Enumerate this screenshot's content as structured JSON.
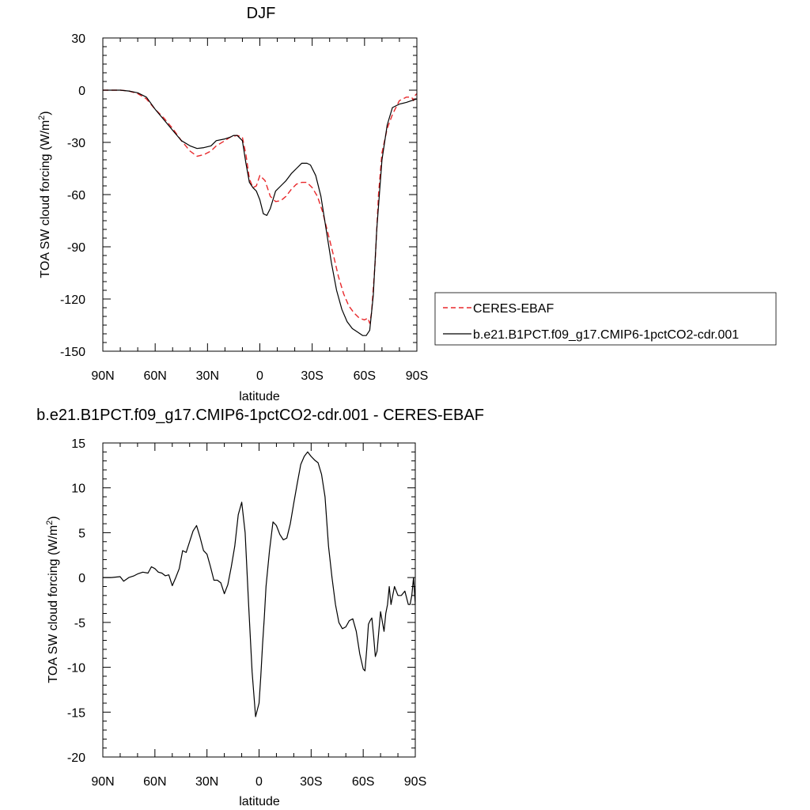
{
  "chart_data": [
    {
      "type": "line",
      "title": "DJF",
      "xlabel": "latitude",
      "ylabel": "TOA SW cloud forcing (W/m",
      "ylabel_sup": "2",
      "ylabel_close": ")",
      "xlim": [
        90,
        -90
      ],
      "ylim": [
        -150,
        30
      ],
      "xticks": [
        {
          "value": 90,
          "label": "90N"
        },
        {
          "value": 60,
          "label": "60N"
        },
        {
          "value": 30,
          "label": "30N"
        },
        {
          "value": 0,
          "label": "0"
        },
        {
          "value": -30,
          "label": "30S"
        },
        {
          "value": -60,
          "label": "60S"
        },
        {
          "value": -90,
          "label": "90S"
        }
      ],
      "yticks": [
        {
          "value": 30,
          "label": "30"
        },
        {
          "value": 0,
          "label": "0"
        },
        {
          "value": -30,
          "label": "-30"
        },
        {
          "value": -60,
          "label": "-60"
        },
        {
          "value": -90,
          "label": "-90"
        },
        {
          "value": -120,
          "label": "-120"
        },
        {
          "value": -150,
          "label": "-150"
        }
      ],
      "legend": {
        "placement": "right"
      },
      "series": [
        {
          "name": "CERES-EBAF",
          "color": "#e8282b",
          "dash": "dashed",
          "x": [
            90,
            85,
            80,
            75,
            70,
            65,
            60,
            55,
            50,
            45,
            40,
            36,
            32,
            28,
            25,
            20,
            17,
            13,
            10,
            8,
            6,
            4,
            2,
            0,
            -3,
            -6,
            -9,
            -12,
            -15,
            -18,
            -21,
            -24,
            -27,
            -30,
            -33,
            -36,
            -39,
            -42,
            -45,
            -48,
            -51,
            -54,
            -57,
            -60,
            -62,
            -63,
            -64,
            -66,
            -68,
            -70,
            -73,
            -76,
            -80,
            -84,
            -87,
            -88,
            -89,
            -90
          ],
          "y": [
            0,
            0,
            0,
            -0.5,
            -2,
            -5,
            -11,
            -16,
            -22,
            -29,
            -35,
            -38,
            -37,
            -35,
            -32,
            -29,
            -27,
            -26,
            -27,
            -37,
            -51,
            -56,
            -55,
            -49,
            -52,
            -61,
            -64,
            -63.5,
            -61,
            -57,
            -54,
            -53,
            -53,
            -56,
            -61,
            -70,
            -82,
            -94,
            -107,
            -117,
            -124,
            -128,
            -131,
            -132,
            -131,
            -134,
            -128,
            -100,
            -60,
            -36,
            -22,
            -14,
            -6,
            -4,
            -4,
            -6,
            -3,
            -2
          ]
        },
        {
          "name": "b.e21.B1PCT.f09_g17.CMIP6-1pctCO2-cdr.001",
          "color": "#000000",
          "dash": "solid",
          "x": [
            90,
            85,
            80,
            75,
            70,
            65,
            60,
            55,
            50,
            45,
            40,
            36,
            32,
            28,
            25,
            20,
            17,
            15,
            13,
            10,
            8,
            6,
            4,
            2,
            0,
            -2,
            -4,
            -6,
            -9,
            -12,
            -15,
            -18,
            -21,
            -24,
            -27,
            -29,
            -32,
            -35,
            -38,
            -41,
            -44,
            -47,
            -50,
            -53,
            -56,
            -59,
            -61,
            -63,
            -65,
            -67,
            -70,
            -73,
            -76,
            -80,
            -84,
            -87,
            -90
          ],
          "y": [
            0,
            0,
            0,
            -0.5,
            -1.5,
            -4,
            -11,
            -17,
            -23,
            -29,
            -32,
            -33.5,
            -33,
            -32,
            -29,
            -28,
            -27,
            -26,
            -26,
            -29,
            -42,
            -53,
            -56,
            -58,
            -63,
            -71,
            -72,
            -68,
            -58,
            -55,
            -52,
            -48,
            -45,
            -42,
            -42,
            -43,
            -49,
            -61,
            -80,
            -99,
            -115,
            -126,
            -133,
            -137,
            -139,
            -141,
            -141,
            -138,
            -118,
            -80,
            -40,
            -20,
            -10,
            -8,
            -7,
            -6,
            -5
          ]
        }
      ]
    },
    {
      "type": "line",
      "title": "b.e21.B1PCT.f09_g17.CMIP6-1pctCO2-cdr.001 - CERES-EBAF",
      "xlabel": "latitude",
      "ylabel": "TOA SW cloud forcing (W/m",
      "ylabel_sup": "2",
      "ylabel_close": ")",
      "xlim": [
        90,
        -90
      ],
      "ylim": [
        -20,
        15
      ],
      "xticks": [
        {
          "value": 90,
          "label": "90N"
        },
        {
          "value": 60,
          "label": "60N"
        },
        {
          "value": 30,
          "label": "30N"
        },
        {
          "value": 0,
          "label": "0"
        },
        {
          "value": -30,
          "label": "30S"
        },
        {
          "value": -60,
          "label": "60S"
        },
        {
          "value": -90,
          "label": "90S"
        }
      ],
      "yticks": [
        {
          "value": 15,
          "label": "15"
        },
        {
          "value": 10,
          "label": "10"
        },
        {
          "value": 5,
          "label": "5"
        },
        {
          "value": 0,
          "label": "0"
        },
        {
          "value": -5,
          "label": "-5"
        },
        {
          "value": -10,
          "label": "-10"
        },
        {
          "value": -15,
          "label": "-15"
        },
        {
          "value": -20,
          "label": "-20"
        }
      ],
      "series": [
        {
          "color": "#000000",
          "dash": "solid",
          "x": [
            90,
            85,
            80,
            78,
            75,
            72,
            70,
            67,
            64,
            62,
            60,
            58,
            56,
            54,
            52,
            50,
            48,
            46,
            44,
            42,
            40,
            38,
            36,
            34,
            32,
            30,
            28,
            26,
            24,
            22,
            20,
            18,
            16,
            14,
            12,
            10,
            8,
            6,
            4,
            2,
            0,
            -1,
            -2,
            -3,
            -4,
            -6,
            -8,
            -10,
            -12,
            -14,
            -16,
            -18,
            -20,
            -22,
            -24,
            -26,
            -28,
            -30,
            -32,
            -34,
            -36,
            -38,
            -40,
            -42,
            -44,
            -46,
            -48,
            -50,
            -52,
            -54,
            -56,
            -58,
            -60,
            -61,
            -62,
            -63,
            -64,
            -65,
            -66,
            -67,
            -68,
            -70,
            -72,
            -73,
            -74,
            -75,
            -76,
            -77,
            -78,
            -80,
            -82,
            -84,
            -86,
            -87,
            -88,
            -89,
            -90
          ],
          "y": [
            0,
            0,
            0.1,
            -0.4,
            0,
            0.2,
            0.4,
            0.6,
            0.5,
            1.2,
            1.0,
            0.6,
            0.5,
            0.2,
            0.3,
            -0.9,
            0,
            1,
            3,
            2.8,
            4,
            5.2,
            5.8,
            4.5,
            3,
            2.6,
            1.2,
            -0.3,
            -0.3,
            -0.6,
            -1.8,
            -0.8,
            1.2,
            3.5,
            7,
            8.4,
            5,
            -3,
            -10.5,
            -15.5,
            -14,
            -11,
            -7.5,
            -4.5,
            -1,
            3,
            6.2,
            5.8,
            4.8,
            4.2,
            4.4,
            6,
            8.3,
            10.5,
            12.6,
            13.5,
            14,
            13.5,
            13.1,
            12.8,
            11.5,
            9,
            3.5,
            0,
            -3,
            -5,
            -5.7,
            -5.5,
            -4.8,
            -4.6,
            -6,
            -8.5,
            -10.2,
            -10.4,
            -8,
            -5.2,
            -4.8,
            -4.5,
            -6.5,
            -8.8,
            -8.2,
            -3.8,
            -6,
            -4,
            -3,
            -1,
            -3,
            -2,
            -1,
            -2,
            -2,
            -1.5,
            -3,
            -3,
            -2,
            0,
            -3
          ]
        }
      ]
    }
  ]
}
